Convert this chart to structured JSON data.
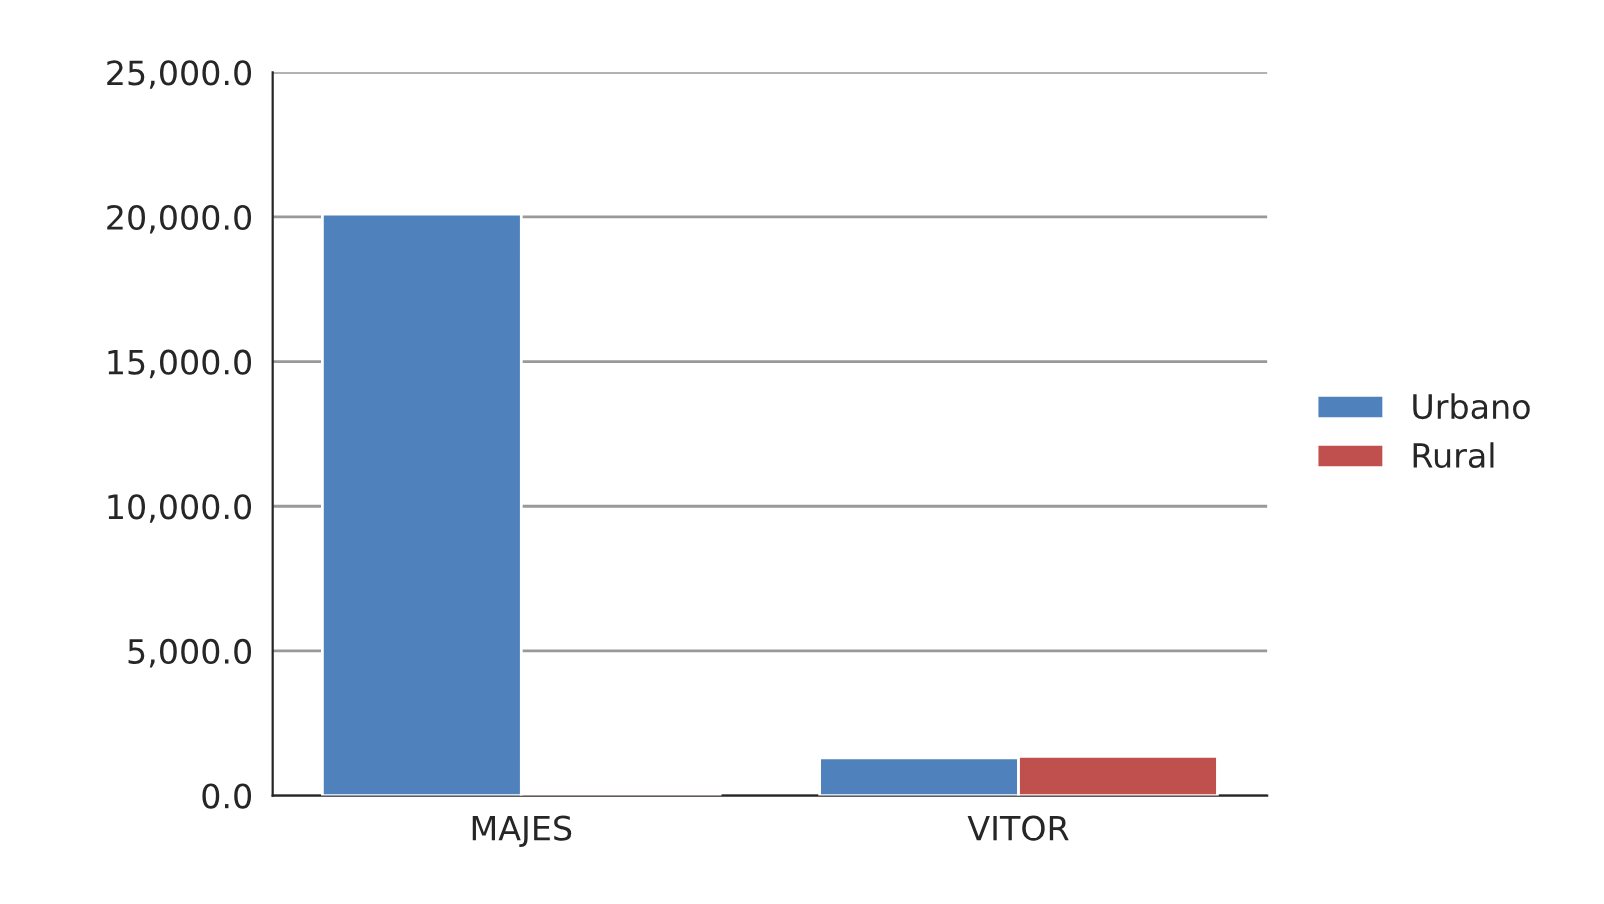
{
  "chart_data": {
    "type": "bar",
    "categories": [
      "MAJES",
      "VITOR"
    ],
    "series": [
      {
        "name": "Urbano",
        "color": "#4f81bd",
        "values": [
          20100,
          1300
        ]
      },
      {
        "name": "Rural",
        "color": "#c0504d",
        "values": [
          50,
          1350
        ]
      }
    ],
    "ylim": [
      0,
      25000
    ],
    "yticks": [
      {
        "value": 0,
        "label": "0.0"
      },
      {
        "value": 5000,
        "label": "5,000.0"
      },
      {
        "value": 10000,
        "label": "10,000.0"
      },
      {
        "value": 15000,
        "label": "15,000.0"
      },
      {
        "value": 20000,
        "label": "20,000.0"
      },
      {
        "value": 25000,
        "label": "25,000.0"
      }
    ],
    "grid": "y",
    "legend": "right"
  }
}
